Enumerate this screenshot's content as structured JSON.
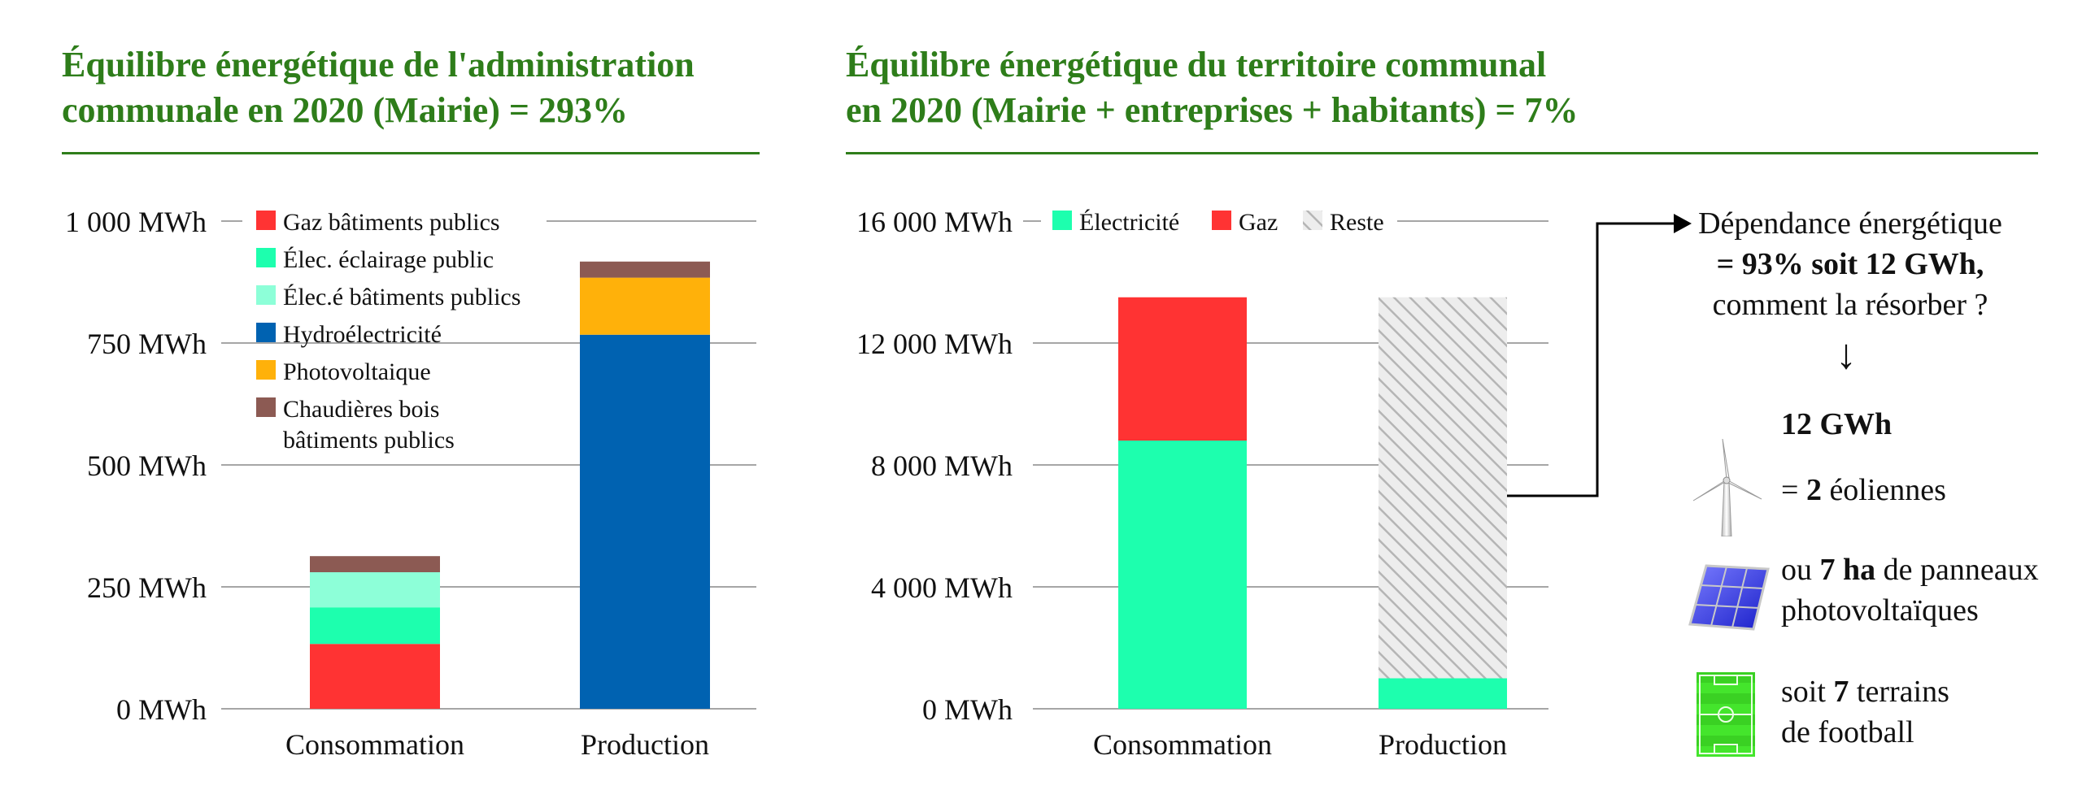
{
  "left": {
    "title_line1": "Équilibre énergétique de l'administration",
    "title_line2": "communale en 2020 (Mairie) = 293%"
  },
  "right": {
    "title_line1": "Équilibre énergétique du territoire communal",
    "title_line2": "en 2020 (Mairie + entreprises + habitants) = 7%"
  },
  "colors": {
    "title_green": "#2e7d1a",
    "gaz": "#ff3333",
    "elec_eclairage": "#1dffae",
    "elec_batiments": "#8dffd8",
    "hydro": "#0062b1",
    "photovoltaique": "#ffb10a",
    "bois": "#8c5a53",
    "electricite": "#1dffae",
    "reste": "#d9d9d9"
  },
  "chart_data": [
    {
      "type": "bar",
      "stacked": true,
      "categories": [
        "Consommation",
        "Production"
      ],
      "ylim": [
        0,
        1000
      ],
      "yticks": [
        0,
        250,
        500,
        750,
        1000
      ],
      "ytick_labels": [
        "0 MWh",
        "250 MWh",
        "500 MWh",
        "750 MWh",
        "1 000 MWh"
      ],
      "series": [
        {
          "name": "Gaz bâtiments publics",
          "color": "#ff3333",
          "values": [
            133,
            0
          ]
        },
        {
          "name": "Élec. éclairage public",
          "color": "#1dffae",
          "values": [
            75,
            0
          ]
        },
        {
          "name": "Élec.é bâtiments publics",
          "color": "#8dffd8",
          "values": [
            72,
            0
          ]
        },
        {
          "name": "Hydroélectricité",
          "color": "#0062b1",
          "values": [
            0,
            767
          ]
        },
        {
          "name": "Photovoltaique",
          "color": "#ffb10a",
          "values": [
            0,
            117
          ]
        },
        {
          "name": "Chaudières bois",
          "name_line2": "bâtiments publics",
          "color": "#8c5a53",
          "values": [
            33,
            33
          ]
        }
      ],
      "legend_position": "top-left"
    },
    {
      "type": "bar",
      "stacked": true,
      "categories": [
        "Consommation",
        "Production"
      ],
      "ylim": [
        0,
        16000
      ],
      "yticks": [
        0,
        4000,
        8000,
        12000,
        16000
      ],
      "ytick_labels": [
        "0 MWh",
        "4 000 MWh",
        "8 000 MWh",
        "12 000 MWh",
        "16 000 MWh"
      ],
      "series": [
        {
          "name": "Électricité",
          "color": "#1dffae",
          "values": [
            8800,
            1000
          ]
        },
        {
          "name": "Gaz",
          "color": "#ff3333",
          "values": [
            4700,
            0
          ]
        },
        {
          "name": "Reste",
          "color": "#d9d9d9",
          "hatched": true,
          "values": [
            0,
            12500
          ]
        }
      ],
      "legend_position": "top"
    }
  ],
  "sidebar": {
    "dep_line1": "Dépendance énergétique",
    "dep_line2": "= 93% soit 12 GWh,",
    "dep_line3": "comment la résorber ?",
    "arrow_down": "↓",
    "gwh": "12 GWh",
    "eol_pre": "= ",
    "eol_num": "2",
    "eol_post": " éoliennes",
    "pv_pre": "ou ",
    "pv_num": "7 ha",
    "pv_post": " de panneaux",
    "pv_line2": "photovoltaïques",
    "foot_pre": "soit ",
    "foot_num": "7",
    "foot_post": " terrains",
    "foot_line2": "de football",
    "icons": [
      "wind-turbine-icon",
      "solar-panel-icon",
      "football-field-icon"
    ]
  }
}
